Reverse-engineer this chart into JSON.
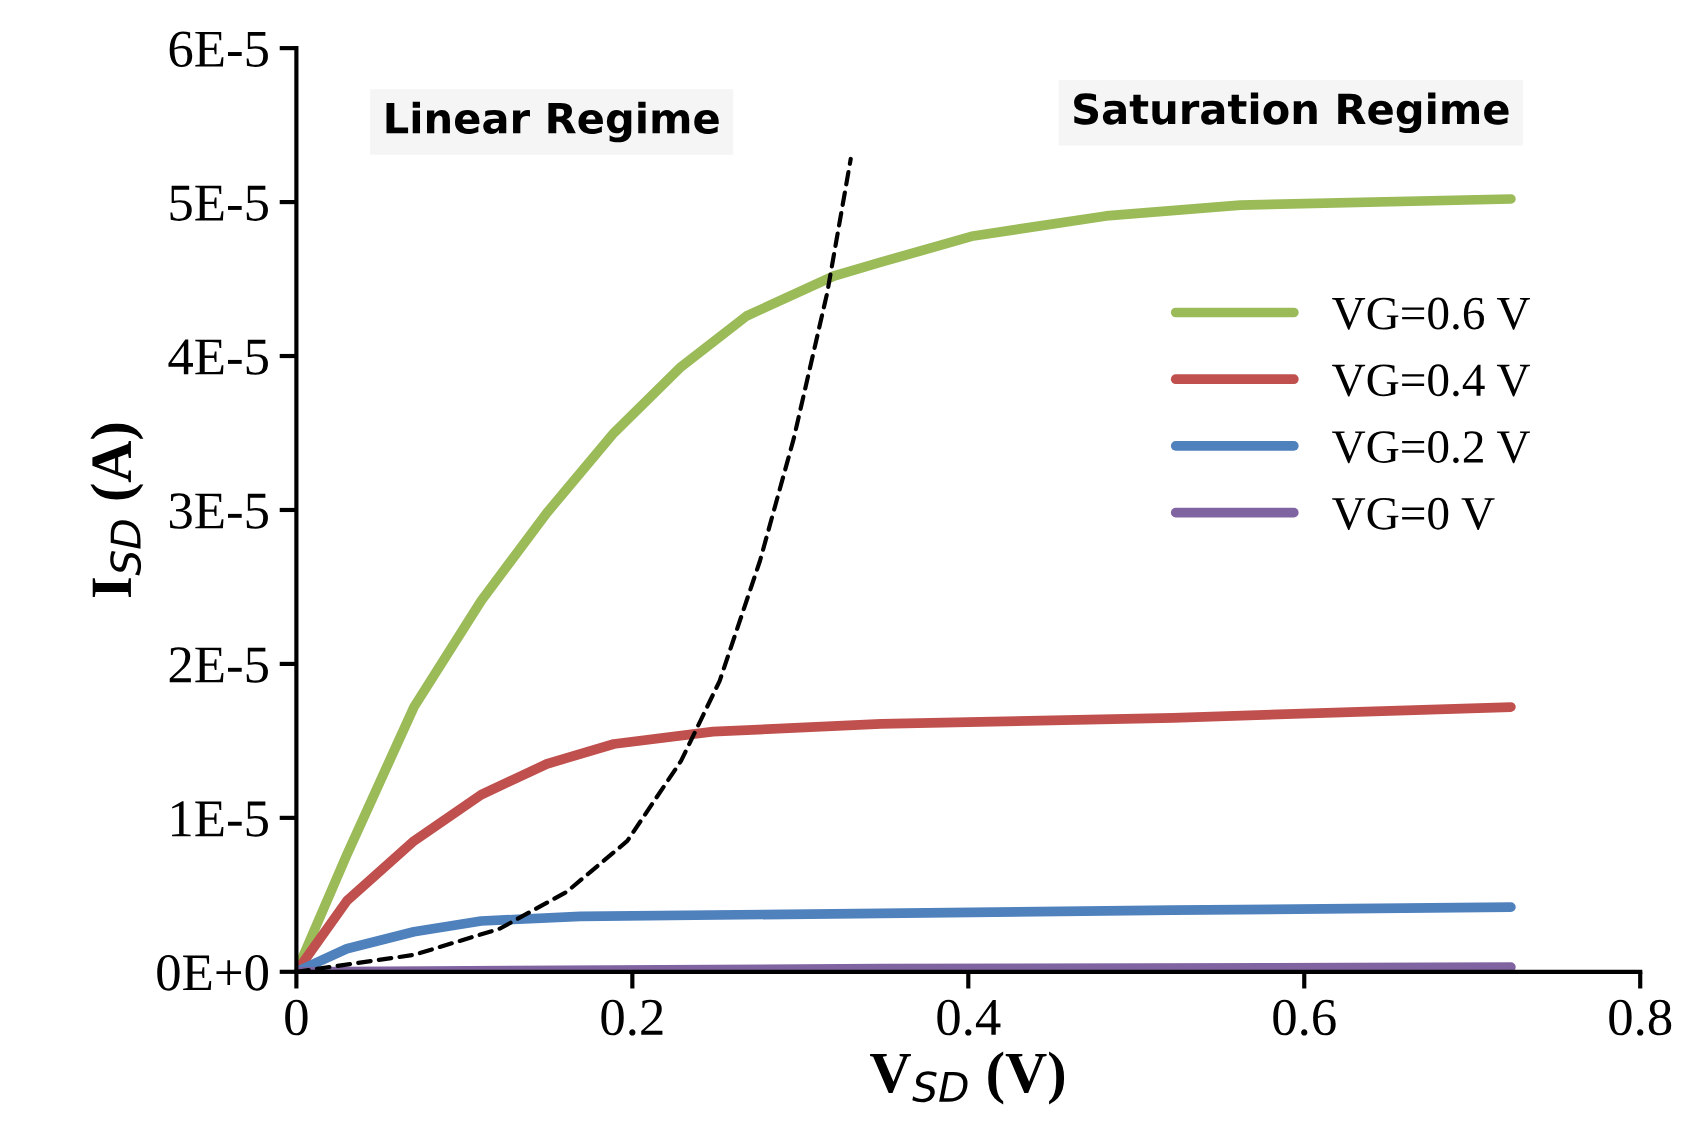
{
  "chart_data": {
    "type": "line",
    "xlabel": "V$_{SD}$ (V)",
    "ylabel": "I$_{SD}$ (A)",
    "xlim": [
      0,
      0.8
    ],
    "xticks": [
      0,
      0.2,
      0.4,
      0.6,
      0.8
    ],
    "ylim": [
      0,
      6e-05
    ],
    "yticks": [
      {
        "value": 0,
        "label": "0E+0"
      },
      {
        "value": 1e-05,
        "label": "1E-5"
      },
      {
        "value": 2e-05,
        "label": "2E-5"
      },
      {
        "value": 3e-05,
        "label": "3E-5"
      },
      {
        "value": 4e-05,
        "label": "4E-5"
      },
      {
        "value": 5e-05,
        "label": "5E-5"
      },
      {
        "value": 6e-05,
        "label": "6E-5"
      }
    ],
    "grid": false,
    "legend": "right",
    "marker": "none",
    "annotations": [
      "Linear Regime",
      "Saturation Regime"
    ],
    "series": [
      {
        "name": "VG=0.6 V",
        "color": "#9bbb59",
        "x": [
          0,
          0.03,
          0.07,
          0.11,
          0.149,
          0.189,
          0.229,
          0.268,
          0.32,
          0.348,
          0.403,
          0.482,
          0.562,
          0.723
        ],
        "values": [
          0,
          7.6e-06,
          1.72e-05,
          2.41e-05,
          2.98e-05,
          3.5e-05,
          3.93e-05,
          4.26e-05,
          4.52e-05,
          4.61e-05,
          4.78e-05,
          4.91e-05,
          4.98e-05,
          5.02e-05
        ]
      },
      {
        "name": "VG=0.4 V",
        "color": "#c0504d",
        "x": [
          0,
          0.03,
          0.07,
          0.11,
          0.149,
          0.189,
          0.248,
          0.348,
          0.522,
          0.723
        ],
        "values": [
          0,
          4.6e-06,
          8.5e-06,
          1.15e-05,
          1.35e-05,
          1.48e-05,
          1.56e-05,
          1.61e-05,
          1.65e-05,
          1.72e-05
        ]
      },
      {
        "name": "VG=0.2 V",
        "color": "#4f81bd",
        "x": [
          0,
          0.03,
          0.07,
          0.11,
          0.169,
          0.348,
          0.522,
          0.723
        ],
        "values": [
          0,
          1.5e-06,
          2.6e-06,
          3.3e-06,
          3.6e-06,
          3.8e-06,
          4e-06,
          4.2e-06
        ]
      },
      {
        "name": "VG=0 V",
        "color": "#8064a2",
        "x": [
          0,
          0.348,
          0.723
        ],
        "values": [
          0,
          2e-07,
          3e-07
        ]
      },
      {
        "color": "#000000",
        "line_style": "dashed",
        "x": [
          0,
          0.07,
          0.121,
          0.161,
          0.197,
          0.229,
          0.252,
          0.276,
          0.296,
          0.316,
          0.33
        ],
        "values": [
          0,
          1.1e-06,
          2.8e-06,
          5.2e-06,
          8.5e-06,
          1.37e-05,
          1.89e-05,
          2.67e-05,
          3.46e-05,
          4.41e-05,
          5.28e-05
        ]
      }
    ]
  }
}
